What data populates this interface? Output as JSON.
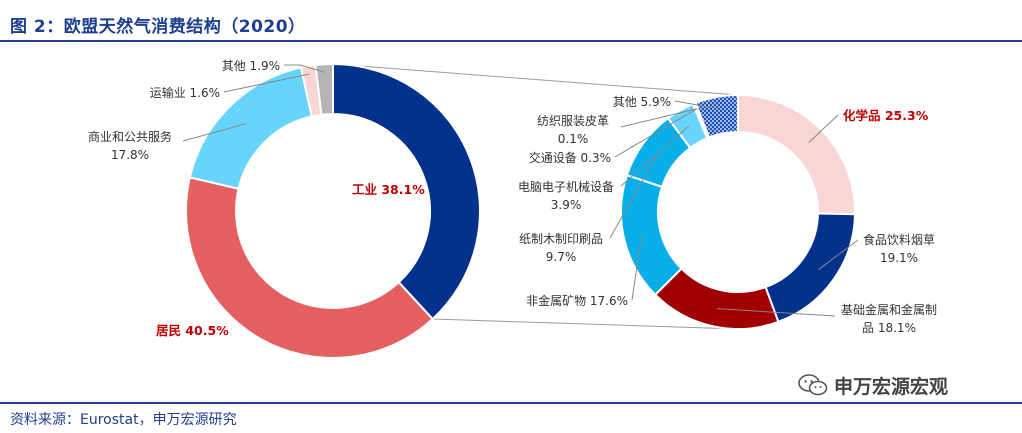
{
  "title": "图 2：欧盟天然气消费结构（2020）",
  "source": "资料来源：Eurostat，申万宏源研究",
  "watermark": "申万宏源宏观",
  "chart_data": [
    {
      "type": "pie",
      "variant": "donut",
      "slices": [
        {
          "label": "工业",
          "value": 38.1,
          "display": "38.1%",
          "color": "#03318c",
          "highlight": true
        },
        {
          "label": "居民",
          "value": 40.5,
          "display": "40.5%",
          "color": "#e46060",
          "highlight": true
        },
        {
          "label": "商业和公共服务",
          "value": 17.8,
          "display": "17.8%",
          "color": "#66d4fb"
        },
        {
          "label": "运输业",
          "value": 1.6,
          "display": "1.6%",
          "color": "#f9d6d6"
        },
        {
          "label": "其他",
          "value": 1.9,
          "display": "1.9%",
          "color": "#b5b5b5"
        }
      ]
    },
    {
      "type": "pie",
      "variant": "donut",
      "breakdown_of": "工业",
      "slices": [
        {
          "label": "化学品",
          "value": 25.3,
          "display": "25.3%",
          "color": "#f9d6d6",
          "highlight": true
        },
        {
          "label": "食品饮料烟草",
          "value": 19.1,
          "display": "19.1%",
          "color": "#03318c"
        },
        {
          "label": "基础金属和金属制品",
          "value": 18.1,
          "display": "18.1%",
          "color": "#a10000"
        },
        {
          "label": "非金属矿物",
          "value": 17.6,
          "display": "17.6%",
          "color": "#08aeea"
        },
        {
          "label": "纸制木制印刷品",
          "value": 9.7,
          "display": "9.7%",
          "color": "#08aeea"
        },
        {
          "label": "电脑电子机械设备",
          "value": 3.9,
          "display": "3.9%",
          "color": "#66d4fb"
        },
        {
          "label": "交通设备",
          "value": 0.3,
          "display": "0.3%",
          "color": "#66d4fb"
        },
        {
          "label": "纺织服装皮革",
          "value": 0.1,
          "display": "0.1%",
          "color": "#66d4fb"
        },
        {
          "label": "其他",
          "value": 5.9,
          "display": "5.9%",
          "color": "#f7b801",
          "pattern": "checkered"
        }
      ]
    }
  ]
}
